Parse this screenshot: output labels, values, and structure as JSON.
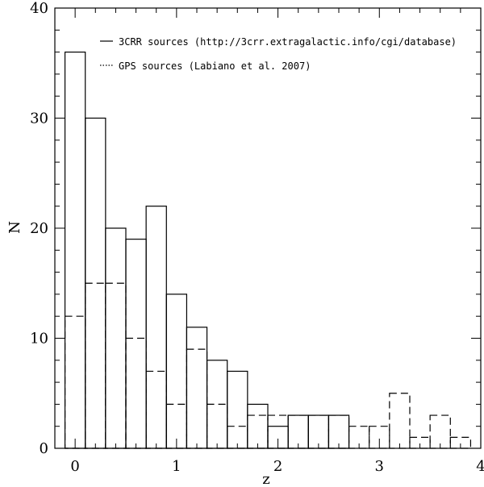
{
  "chart_data": {
    "type": "bar",
    "xlabel": "z",
    "ylabel": "N",
    "xlim": [
      -0.2,
      4.0
    ],
    "ylim": [
      0,
      40
    ],
    "x_ticks": [
      0,
      1,
      2,
      3,
      4
    ],
    "y_ticks": [
      0,
      10,
      20,
      30,
      40
    ],
    "grid": false,
    "legend_position": "top-right",
    "bin_edges": [
      -0.1,
      0.1,
      0.3,
      0.5,
      0.7,
      0.9,
      1.1,
      1.3,
      1.5,
      1.7,
      1.9,
      2.1,
      2.3,
      2.5,
      2.7,
      2.9,
      3.1,
      3.3,
      3.5,
      3.7,
      3.9
    ],
    "series": [
      {
        "name": "3CRR sources (http://3crr.extragalactic.info/cgi/database)",
        "style": "solid",
        "values": [
          36,
          30,
          20,
          19,
          22,
          14,
          11,
          8,
          7,
          4,
          2,
          3,
          3,
          3,
          0,
          0,
          0,
          0,
          0,
          0
        ]
      },
      {
        "name": "GPS sources (Labiano et al. 2007)",
        "style": "dashed",
        "values": [
          12,
          15,
          15,
          10,
          7,
          4,
          9,
          4,
          2,
          3,
          3,
          3,
          3,
          3,
          2,
          2,
          5,
          1,
          3,
          1
        ]
      }
    ]
  }
}
